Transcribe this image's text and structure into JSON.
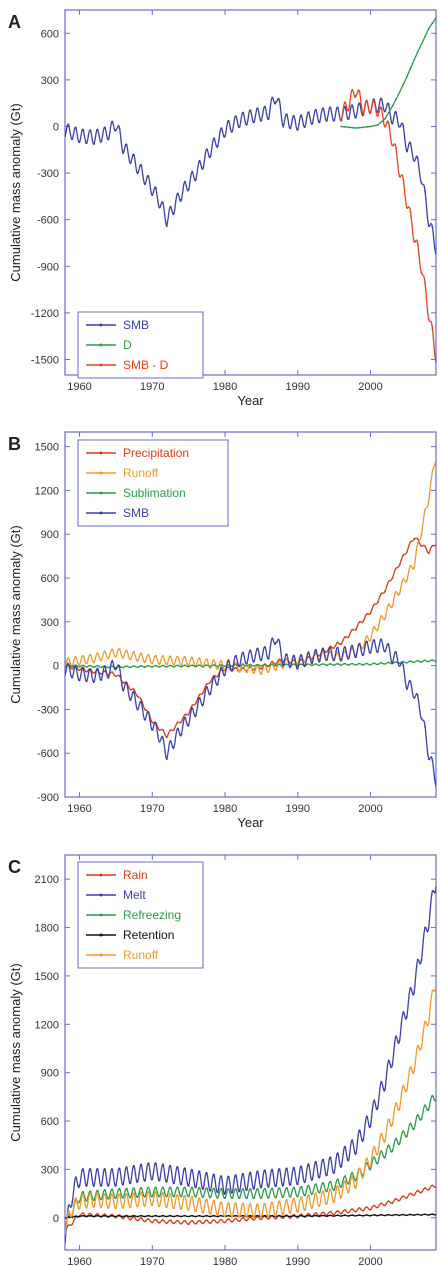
{
  "chart_data": [
    {
      "type": "line",
      "panel_label": "A",
      "xlabel": "Year",
      "ylabel": "Cumulative mass anomaly (Gt)",
      "xlim": [
        1958,
        2009
      ],
      "ylim": [
        -1600,
        750
      ],
      "x_ticks": [
        1960,
        1970,
        1980,
        1990,
        2000
      ],
      "y_ticks": [
        -1500,
        -1200,
        -900,
        -600,
        -300,
        0,
        300,
        600
      ],
      "legend_position": "bottom-left",
      "series": [
        {
          "name": "SMB",
          "color": "#3b3fa8",
          "x": [
            1958,
            1960,
            1962,
            1964,
            1965,
            1966,
            1968,
            1970,
            1971,
            1972,
            1974,
            1976,
            1978,
            1980,
            1982,
            1984,
            1986,
            1987,
            1988,
            1990,
            1992,
            1994,
            1996,
            1998,
            2000,
            2002,
            2003,
            2004,
            2005,
            2006,
            2007,
            2008,
            2009
          ],
          "y": [
            -20,
            -60,
            -70,
            -40,
            20,
            -130,
            -260,
            -400,
            -480,
            -600,
            -430,
            -300,
            -150,
            -20,
            40,
            70,
            90,
            200,
            40,
            20,
            60,
            80,
            80,
            100,
            130,
            140,
            60,
            40,
            -120,
            -180,
            -320,
            -600,
            -780
          ],
          "amp": 90
        },
        {
          "name": "D",
          "color": "#2e9a4a",
          "x": [
            1996,
            1998,
            2000,
            2001,
            2002,
            2003,
            2004,
            2005,
            2006,
            2007,
            2008,
            2009
          ],
          "y": [
            0,
            -10,
            0,
            10,
            50,
            130,
            220,
            320,
            430,
            530,
            630,
            700
          ],
          "amp": 0
        },
        {
          "name": "SMB - D",
          "color": "#e8421c",
          "x": [
            1996,
            1997,
            1998,
            1999,
            2000,
            2001,
            2002,
            2003,
            2004,
            2005,
            2006,
            2007,
            2008,
            2009
          ],
          "y": [
            80,
            150,
            240,
            120,
            130,
            110,
            40,
            -80,
            -280,
            -480,
            -700,
            -900,
            -1200,
            -1480
          ],
          "amp": 90
        }
      ]
    },
    {
      "type": "line",
      "panel_label": "B",
      "xlabel": "Year",
      "ylabel": "Cumulative mass anomaly (Gt)",
      "xlim": [
        1958,
        2009
      ],
      "ylim": [
        -900,
        1600
      ],
      "x_ticks": [
        1960,
        1970,
        1980,
        1990,
        2000
      ],
      "y_ticks": [
        -900,
        -600,
        -300,
        0,
        300,
        600,
        900,
        1200,
        1500
      ],
      "legend_position": "top-left",
      "series": [
        {
          "name": "Precipitation",
          "color": "#d93a1a",
          "x": [
            1958,
            1962,
            1965,
            1968,
            1970,
            1972,
            1975,
            1978,
            1980,
            1982,
            1985,
            1988,
            1990,
            1993,
            1996,
            1998,
            2000,
            2002,
            2004,
            2006,
            2008,
            2009
          ],
          "y": [
            0,
            -40,
            -60,
            -200,
            -380,
            -480,
            -320,
            -100,
            -20,
            -30,
            -10,
            40,
            20,
            80,
            160,
            260,
            370,
            520,
            700,
            880,
            780,
            840
          ],
          "amp": 25
        },
        {
          "name": "Runoff",
          "color": "#f4982c",
          "x": [
            1958,
            1962,
            1965,
            1968,
            1970,
            1975,
            1980,
            1985,
            1990,
            1993,
            1996,
            1998,
            2000,
            2002,
            2004,
            2006,
            2008,
            2009
          ],
          "y": [
            20,
            50,
            90,
            60,
            40,
            30,
            0,
            -30,
            40,
            70,
            60,
            100,
            200,
            350,
            520,
            700,
            1150,
            1450
          ],
          "amp": 60
        },
        {
          "name": "Sublimation",
          "color": "#2e9a4a",
          "x": [
            1958,
            1965,
            1970,
            1980,
            1990,
            2000,
            2009
          ],
          "y": [
            0,
            -10,
            -5,
            0,
            5,
            10,
            35
          ],
          "amp": 10
        },
        {
          "name": "SMB",
          "color": "#3b3fa8",
          "x": [
            1958,
            1960,
            1962,
            1964,
            1965,
            1966,
            1968,
            1970,
            1971,
            1972,
            1974,
            1976,
            1978,
            1980,
            1982,
            1984,
            1986,
            1987,
            1988,
            1990,
            1992,
            1994,
            1996,
            1998,
            2000,
            2002,
            2003,
            2004,
            2005,
            2006,
            2007,
            2008,
            2009
          ],
          "y": [
            -20,
            -60,
            -70,
            -40,
            20,
            -130,
            -260,
            -400,
            -480,
            -600,
            -430,
            -300,
            -150,
            -20,
            40,
            70,
            90,
            200,
            40,
            20,
            60,
            80,
            80,
            100,
            130,
            140,
            60,
            40,
            -120,
            -180,
            -320,
            -600,
            -780
          ],
          "amp": 90
        }
      ]
    },
    {
      "type": "line",
      "panel_label": "C",
      "xlabel": "Year",
      "ylabel": "Cumulative mass anomaly (Gt)",
      "xlim": [
        1958,
        2009
      ],
      "ylim": [
        -200,
        2250
      ],
      "x_ticks": [
        1960,
        1970,
        1980,
        1990,
        2000
      ],
      "y_ticks": [
        0,
        300,
        600,
        900,
        1200,
        1500,
        1800,
        2100
      ],
      "legend_position": "top-left",
      "series": [
        {
          "name": "Rain",
          "color": "#d93a1a",
          "x": [
            1958,
            1960,
            1965,
            1970,
            1975,
            1980,
            1985,
            1990,
            1995,
            2000,
            2003,
            2006,
            2009
          ],
          "y": [
            -80,
            20,
            10,
            -20,
            -30,
            -20,
            0,
            10,
            30,
            60,
            100,
            150,
            200
          ],
          "amp": 20
        },
        {
          "name": "Melt",
          "color": "#3b3fa8",
          "x": [
            1958,
            1959,
            1960,
            1962,
            1965,
            1970,
            1975,
            1980,
            1985,
            1990,
            1995,
            1998,
            2000,
            2002,
            2004,
            2006,
            2008,
            2009
          ],
          "y": [
            -100,
            150,
            250,
            250,
            250,
            290,
            250,
            200,
            240,
            260,
            330,
            450,
            620,
            850,
            1150,
            1450,
            1850,
            2100
          ],
          "amp": 110
        },
        {
          "name": "Refreezing",
          "color": "#2e9a4a",
          "x": [
            1958,
            1960,
            1965,
            1970,
            1975,
            1980,
            1985,
            1990,
            1995,
            1998,
            2000,
            2003,
            2006,
            2009
          ],
          "y": [
            -50,
            130,
            150,
            160,
            160,
            150,
            150,
            160,
            200,
            260,
            330,
            440,
            580,
            760
          ],
          "amp": 60
        },
        {
          "name": "Retention",
          "color": "#111111",
          "x": [
            1958,
            1960,
            1970,
            1980,
            1990,
            2000,
            2009
          ],
          "y": [
            0,
            10,
            10,
            10,
            10,
            15,
            20
          ],
          "amp": 5
        },
        {
          "name": "Runoff",
          "color": "#f4982c",
          "x": [
            1958,
            1959,
            1960,
            1962,
            1965,
            1970,
            1975,
            1980,
            1985,
            1990,
            1995,
            1998,
            2000,
            2002,
            2004,
            2006,
            2008,
            2009
          ],
          "y": [
            -60,
            60,
            100,
            110,
            100,
            120,
            90,
            50,
            40,
            80,
            140,
            230,
            360,
            520,
            720,
            950,
            1250,
            1480
          ],
          "amp": 90
        }
      ]
    }
  ]
}
